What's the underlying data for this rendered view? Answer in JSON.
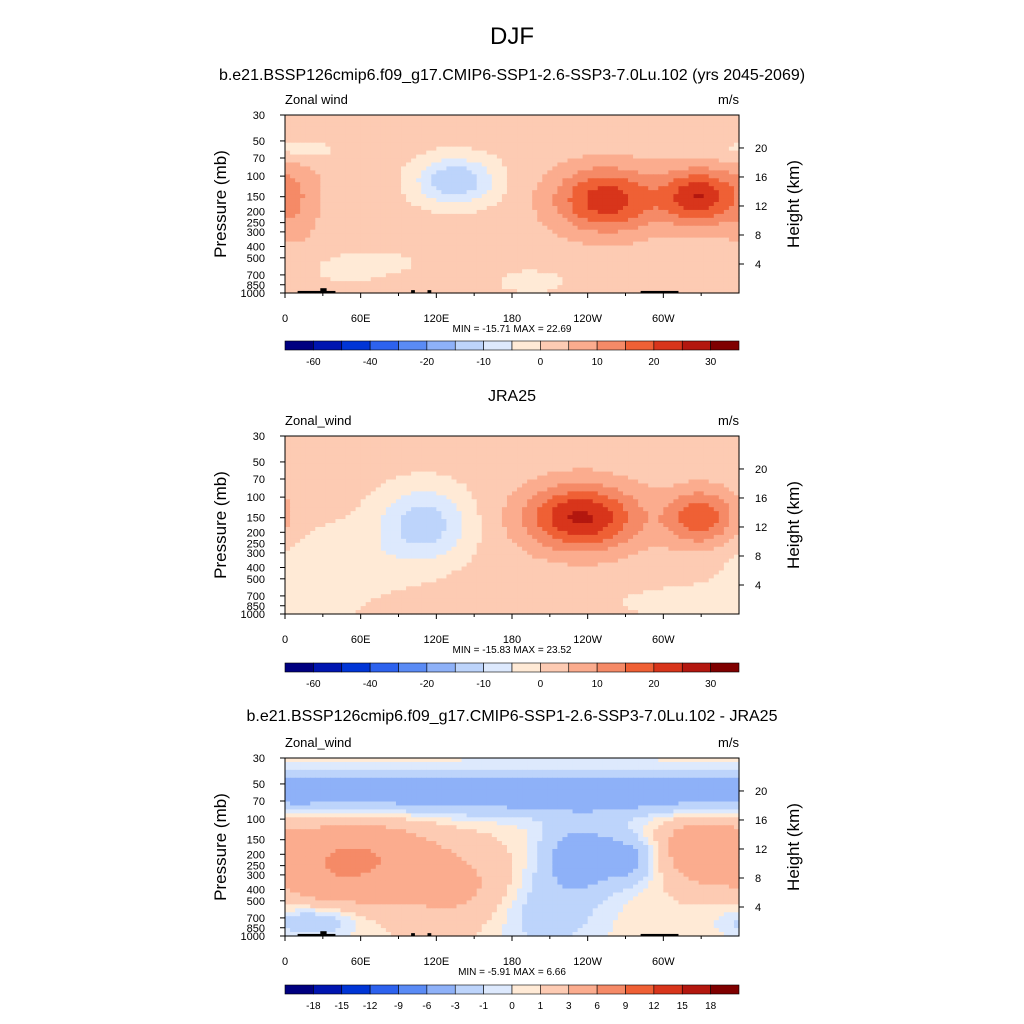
{
  "figure_title": "DJF",
  "colors": {
    "wind_scale": [
      "#000080",
      "#0015b0",
      "#0035d6",
      "#2d62ee",
      "#5a8bf5",
      "#8eb1f8",
      "#bdd4fb",
      "#dde9fd",
      "#ffead6",
      "#fdcbb3",
      "#fbac8e",
      "#f58a67",
      "#ef6035",
      "#d8351b",
      "#b3170f",
      "#7f0000"
    ],
    "diff_scale": [
      "#000080",
      "#0015b0",
      "#0035d6",
      "#2d62ee",
      "#5a8bf5",
      "#8eb1f8",
      "#bdd4fb",
      "#dde9fd",
      "#ffead6",
      "#fdcbb3",
      "#fbac8e",
      "#f58a67",
      "#ef6035",
      "#d8351b",
      "#b3170f",
      "#7f0000"
    ],
    "topography": "#000000"
  },
  "chart_data": [
    {
      "type": "heatmap",
      "title": "b.e21.BSSP126cmip6.f09_g17.CMIP6-SSP1-2.6-SSP3-7.0Lu.102 (yrs 2045-2069)",
      "left_label": "Zonal wind",
      "units": "m/s",
      "ylabel": "Pressure (mb)",
      "ylabel_right": "Height (km)",
      "x_ticks": [
        "0",
        "60E",
        "120E",
        "180",
        "120W",
        "60W"
      ],
      "x_tick_lon": [
        0,
        60,
        120,
        180,
        240,
        300
      ],
      "xlim": [
        0,
        360
      ],
      "y_ticks": [
        "30",
        "50",
        "70",
        "100",
        "150",
        "200",
        "250",
        "300",
        "400",
        "500",
        "700",
        "850",
        "1000"
      ],
      "y_tick_p": [
        30,
        50,
        70,
        100,
        150,
        200,
        250,
        300,
        400,
        500,
        700,
        850,
        1000
      ],
      "ylim": [
        1000,
        30
      ],
      "y_scale": "log",
      "right_ticks": [
        "20",
        "16",
        "12",
        "8",
        "4"
      ],
      "right_tick_km": [
        20,
        16,
        12,
        8,
        4
      ],
      "stats": "MIN = -15.71  MAX =  22.69",
      "colorbar_labels": [
        "-60",
        "-40",
        "-20",
        "-10",
        "0",
        "10",
        "20",
        "30"
      ],
      "field": "model",
      "has_topography": true,
      "min": -15.71,
      "max": 22.69
    },
    {
      "type": "heatmap",
      "title": "JRA25",
      "left_label": "Zonal_wind",
      "units": "m/s",
      "ylabel": "Pressure (mb)",
      "ylabel_right": "Height (km)",
      "x_ticks": [
        "0",
        "60E",
        "120E",
        "180",
        "120W",
        "60W"
      ],
      "x_tick_lon": [
        0,
        60,
        120,
        180,
        240,
        300
      ],
      "xlim": [
        0,
        360
      ],
      "y_ticks": [
        "30",
        "50",
        "70",
        "100",
        "150",
        "200",
        "250",
        "300",
        "400",
        "500",
        "700",
        "850",
        "1000"
      ],
      "y_tick_p": [
        30,
        50,
        70,
        100,
        150,
        200,
        250,
        300,
        400,
        500,
        700,
        850,
        1000
      ],
      "ylim": [
        1000,
        30
      ],
      "y_scale": "log",
      "right_ticks": [
        "20",
        "16",
        "12",
        "8",
        "4"
      ],
      "right_tick_km": [
        20,
        16,
        12,
        8,
        4
      ],
      "stats": "MIN = -15.83  MAX =  23.52",
      "colorbar_labels": [
        "-60",
        "-40",
        "-20",
        "-10",
        "0",
        "10",
        "20",
        "30"
      ],
      "field": "obs",
      "has_topography": false,
      "min": -15.83,
      "max": 23.52
    },
    {
      "type": "heatmap",
      "title": "b.e21.BSSP126cmip6.f09_g17.CMIP6-SSP1-2.6-SSP3-7.0Lu.102 - JRA25",
      "left_label": "Zonal_wind",
      "units": "m/s",
      "ylabel": "Pressure (mb)",
      "ylabel_right": "Height (km)",
      "x_ticks": [
        "0",
        "60E",
        "120E",
        "180",
        "120W",
        "60W"
      ],
      "x_tick_lon": [
        0,
        60,
        120,
        180,
        240,
        300
      ],
      "xlim": [
        0,
        360
      ],
      "y_ticks": [
        "30",
        "50",
        "70",
        "100",
        "150",
        "200",
        "250",
        "300",
        "400",
        "500",
        "700",
        "850",
        "1000"
      ],
      "y_tick_p": [
        30,
        50,
        70,
        100,
        150,
        200,
        250,
        300,
        400,
        500,
        700,
        850,
        1000
      ],
      "ylim": [
        1000,
        30
      ],
      "y_scale": "log",
      "right_ticks": [
        "20",
        "16",
        "12",
        "8",
        "4"
      ],
      "right_tick_km": [
        20,
        16,
        12,
        8,
        4
      ],
      "stats": "MIN =  -5.91  MAX =   6.66",
      "colorbar_labels": [
        "-18",
        "-15",
        "-12",
        "-9",
        "-6",
        "-3",
        "-1",
        "0",
        "1",
        "3",
        "6",
        "9",
        "12",
        "15",
        "18"
      ],
      "field": "diff",
      "has_topography": true,
      "min": -5.91,
      "max": 6.66
    }
  ]
}
